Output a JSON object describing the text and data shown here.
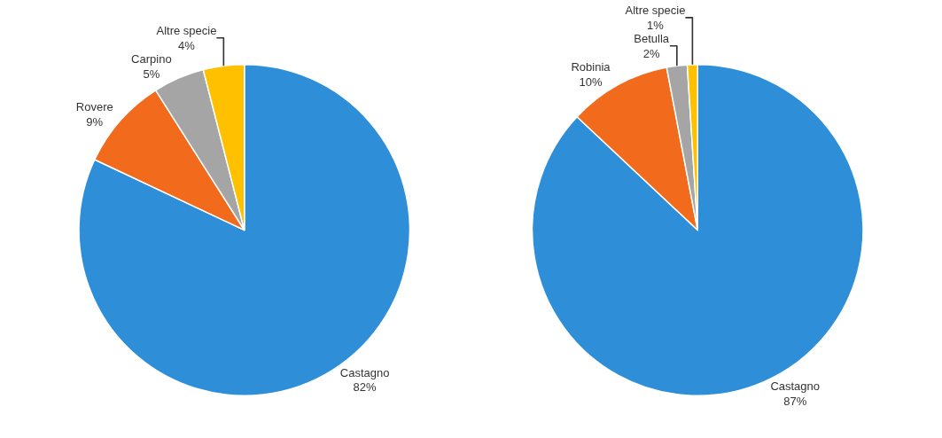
{
  "chart_data": [
    {
      "type": "pie",
      "categories": [
        "Castagno",
        "Rovere",
        "Carpino",
        "Altre specie"
      ],
      "values": [
        82,
        9,
        5,
        4
      ],
      "value_labels": [
        "82%",
        "9%",
        "5%",
        "4%"
      ],
      "colors": [
        "#2e8fd8",
        "#f26b1d",
        "#a5a5a5",
        "#ffc000"
      ],
      "legend": false
    },
    {
      "type": "pie",
      "categories": [
        "Castagno",
        "Robinia",
        "Betulla",
        "Altre specie"
      ],
      "values": [
        87,
        10,
        2,
        1
      ],
      "value_labels": [
        "87%",
        "10%",
        "2%",
        "1%"
      ],
      "colors": [
        "#2e8fd8",
        "#f26b1d",
        "#a5a5a5",
        "#ffc000"
      ],
      "legend": false
    }
  ]
}
